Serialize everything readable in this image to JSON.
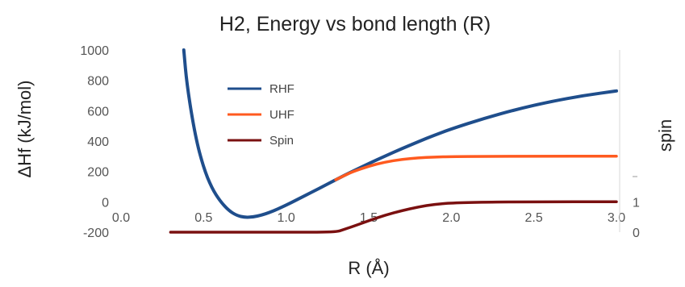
{
  "chart_data": {
    "type": "line",
    "title": "H2, Energy vs bond length (R)",
    "xlabel": "R (Å)",
    "ylabel": "ΔHf (kJ/mol)",
    "y2label": "spin",
    "xlim": [
      0.0,
      3.0
    ],
    "ylim": [
      -200,
      1000
    ],
    "y2lim": [
      0,
      1
    ],
    "x_ticks": [
      "0.0",
      "0.5",
      "1.0",
      "1.5",
      "2.0",
      "2.5",
      "3.0"
    ],
    "y_ticks": [
      "1000",
      "800",
      "600",
      "400",
      "200",
      "0",
      "-200"
    ],
    "y2_ticks": [
      "1",
      "0"
    ],
    "grid": false,
    "legend_position": "upper-left-inside",
    "series": [
      {
        "name": "RHF",
        "color": "#1f4e8c",
        "axis": "left",
        "points": [
          [
            0.38,
            1000
          ],
          [
            0.4,
            760
          ],
          [
            0.45,
            430
          ],
          [
            0.5,
            225
          ],
          [
            0.55,
            90
          ],
          [
            0.6,
            5
          ],
          [
            0.65,
            -55
          ],
          [
            0.7,
            -90
          ],
          [
            0.75,
            -103
          ],
          [
            0.8,
            -100
          ],
          [
            0.85,
            -88
          ],
          [
            0.9,
            -70
          ],
          [
            0.95,
            -47
          ],
          [
            1.0,
            -22
          ],
          [
            1.1,
            33
          ],
          [
            1.2,
            88
          ],
          [
            1.3,
            145
          ],
          [
            1.4,
            200
          ],
          [
            1.5,
            252
          ],
          [
            1.6,
            302
          ],
          [
            1.7,
            350
          ],
          [
            1.8,
            396
          ],
          [
            1.9,
            440
          ],
          [
            2.0,
            480
          ],
          [
            2.2,
            550
          ],
          [
            2.4,
            610
          ],
          [
            2.6,
            660
          ],
          [
            2.8,
            700
          ],
          [
            3.0,
            730
          ]
        ]
      },
      {
        "name": "UHF",
        "color": "#ff5a1f",
        "axis": "left",
        "points": [
          [
            1.3,
            145
          ],
          [
            1.35,
            172
          ],
          [
            1.4,
            197
          ],
          [
            1.5,
            235
          ],
          [
            1.6,
            262
          ],
          [
            1.7,
            280
          ],
          [
            1.8,
            290
          ],
          [
            1.9,
            295
          ],
          [
            2.0,
            298
          ],
          [
            2.2,
            299
          ],
          [
            2.5,
            300
          ],
          [
            3.0,
            300
          ]
        ]
      },
      {
        "name": "Spin",
        "color": "#7a1010",
        "axis": "right",
        "points": [
          [
            0.3,
            0
          ],
          [
            0.5,
            0
          ],
          [
            1.0,
            0
          ],
          [
            1.3,
            0
          ],
          [
            1.35,
            0.09
          ],
          [
            1.4,
            0.18
          ],
          [
            1.5,
            0.38
          ],
          [
            1.6,
            0.56
          ],
          [
            1.7,
            0.71
          ],
          [
            1.8,
            0.83
          ],
          [
            1.9,
            0.92
          ],
          [
            2.0,
            0.96
          ],
          [
            2.2,
            0.99
          ],
          [
            2.5,
            1.0
          ],
          [
            3.0,
            1.0
          ]
        ]
      }
    ]
  }
}
